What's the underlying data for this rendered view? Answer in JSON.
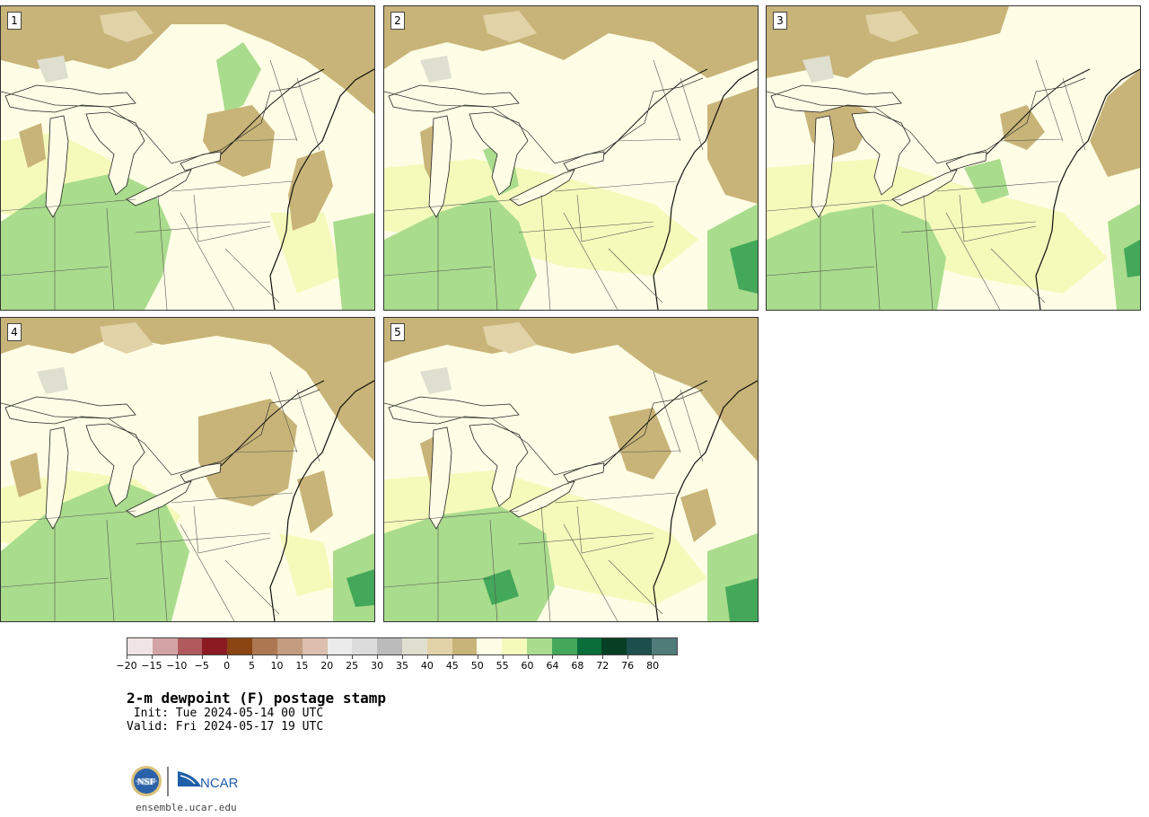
{
  "panels": [
    {
      "label": "1"
    },
    {
      "label": "2"
    },
    {
      "label": "3"
    },
    {
      "label": "4"
    },
    {
      "label": "5"
    }
  ],
  "legend": {
    "tick_labels": [
      "−20",
      "−15",
      "−10",
      "−5",
      "0",
      "5",
      "10",
      "15",
      "20",
      "25",
      "30",
      "35",
      "40",
      "45",
      "50",
      "55",
      "60",
      "64",
      "68",
      "72",
      "76",
      "80"
    ],
    "colors": [
      "#f1e4e4",
      "#d4a3a5",
      "#b05a5e",
      "#8b1a22",
      "#8b4513",
      "#ad7751",
      "#c49c80",
      "#dcbfaf",
      "#ebebeb",
      "#dcdcdc",
      "#bbbbbb",
      "#dfdfcf",
      "#e1d3a7",
      "#c8b478",
      "#fffde5",
      "#f5faba",
      "#a9dc8c",
      "#43a85a",
      "#0a6e3a",
      "#063f24",
      "#1d4f4c",
      "#4f7b79"
    ]
  },
  "title": "2-m dewpoint (F) postage stamp",
  "init": " Init: Tue 2024-05-14 00 UTC",
  "valid": "Valid: Fri 2024-05-17 19 UTC",
  "logo": {
    "nsf": "NSF",
    "ncar": "NCAR"
  },
  "site": "ensemble.ucar.edu"
}
